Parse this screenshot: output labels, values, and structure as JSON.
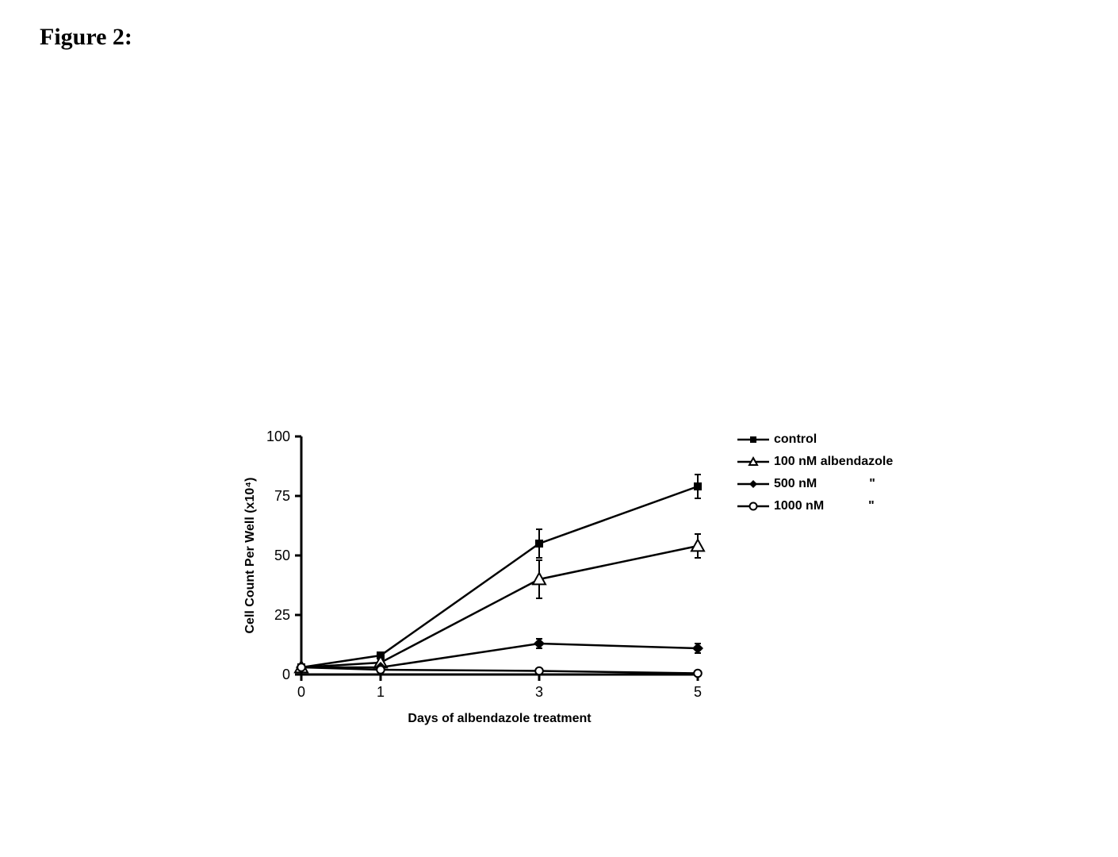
{
  "figure_label": "Figure 2:",
  "chart": {
    "type": "line",
    "x_categories": [
      0,
      1,
      3,
      5
    ],
    "x_positions": [
      0,
      1,
      3,
      5
    ],
    "xlabel": "Days of albendazole treatment",
    "ylabel": "Cell Count Per Well (x10⁴)",
    "ylim": [
      0,
      100
    ],
    "ytick_step": 25,
    "yticks": [
      0,
      25,
      50,
      75,
      100
    ],
    "xlim": [
      0,
      5
    ],
    "axis_color": "#000000",
    "line_color": "#000000",
    "line_width": 2.5,
    "error_cap_width": 8,
    "font_family": "Arial",
    "axis_label_fontsize": 16,
    "axis_label_fontweight": "bold",
    "tick_fontsize": 18,
    "legend_fontsize": 16,
    "background_color": "#ffffff",
    "series": [
      {
        "name": "control",
        "marker": "filled-square",
        "marker_size": 8,
        "y": [
          3,
          8,
          55,
          79
        ],
        "err": [
          0,
          1,
          6,
          5
        ]
      },
      {
        "name": "100 nM albendazole",
        "marker": "open-triangle",
        "marker_size": 8,
        "y": [
          3,
          5,
          40,
          54
        ],
        "err": [
          0,
          1,
          8,
          5
        ]
      },
      {
        "name": "500 nM",
        "marker": "filled-diamond",
        "marker_size": 7,
        "y": [
          3,
          3,
          13,
          11
        ],
        "err": [
          0,
          0,
          2,
          2
        ]
      },
      {
        "name": "1000 nM",
        "marker": "open-circle",
        "marker_size": 6,
        "y": [
          3,
          2,
          1.5,
          0.5
        ],
        "err": [
          0,
          0,
          0,
          0
        ]
      }
    ],
    "legend": {
      "items": [
        {
          "label": "control",
          "marker": "filled-square",
          "suffix": ""
        },
        {
          "label": "100  nM albendazole",
          "marker": "open-triangle",
          "suffix": ""
        },
        {
          "label": "500   nM",
          "marker": "filled-diamond",
          "suffix": "\""
        },
        {
          "label": "1000 nM",
          "marker": "open-circle",
          "suffix": "\""
        }
      ]
    }
  }
}
